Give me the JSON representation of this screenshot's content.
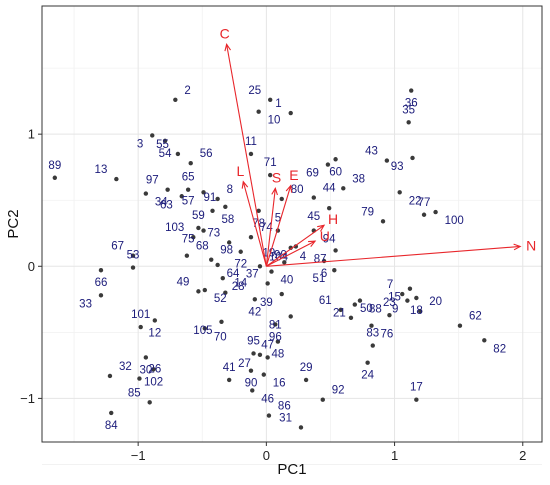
{
  "chart_data": {
    "type": "scatter",
    "subtype": "pca-biplot",
    "xlabel": "PC1",
    "ylabel": "PC2",
    "xlim": [
      -1.75,
      2.15
    ],
    "ylim": [
      -1.33,
      1.97
    ],
    "xticks": [
      -1,
      0,
      1,
      2
    ],
    "yticks": [
      -1,
      0,
      1
    ],
    "xtick_labels": [
      "−1",
      "0",
      "1",
      "2"
    ],
    "ytick_labels": [
      "−1",
      "0",
      "1"
    ],
    "grid": true,
    "colors": {
      "points": "#3a3a3a",
      "labels": "#1b1b7a",
      "loadings": "#e8262b"
    },
    "points": [
      {
        "label": "1",
        "x": 0.19,
        "y": 1.16
      },
      {
        "label": "2",
        "x": -0.71,
        "y": 1.26
      },
      {
        "label": "3",
        "x": -0.89,
        "y": 0.99
      },
      {
        "label": "4",
        "x": 0.19,
        "y": 0.14
      },
      {
        "label": "5",
        "x": 0.09,
        "y": 0.27
      },
      {
        "label": "6",
        "x": 0.45,
        "y": 0.04
      },
      {
        "label": "7",
        "x": 1.06,
        "y": -0.21
      },
      {
        "label": "8",
        "x": -0.38,
        "y": 0.51
      },
      {
        "label": "9",
        "x": 1.1,
        "y": -0.26
      },
      {
        "label": "10",
        "x": -0.06,
        "y": 1.17
      },
      {
        "label": "11",
        "x": -0.12,
        "y": 0.85
      },
      {
        "label": "12",
        "x": -0.87,
        "y": -0.41
      },
      {
        "label": "13",
        "x": -1.17,
        "y": 0.66
      },
      {
        "label": "14",
        "x": -0.32,
        "y": -0.2
      },
      {
        "label": "15",
        "x": 1.12,
        "y": -0.17
      },
      {
        "label": "16",
        "x": -0.02,
        "y": -0.82
      },
      {
        "label": "17",
        "x": 1.17,
        "y": -1.01
      },
      {
        "label": "18",
        "x": 1.17,
        "y": -0.24
      },
      {
        "label": "19",
        "x": 0.14,
        "y": 0.03
      },
      {
        "label": "20",
        "x": 1.2,
        "y": -0.34
      },
      {
        "label": "21",
        "x": 0.69,
        "y": -0.29
      },
      {
        "label": "22",
        "x": 1.04,
        "y": 0.56
      },
      {
        "label": "23",
        "x": 0.96,
        "y": -0.37
      },
      {
        "label": "24",
        "x": 0.79,
        "y": -0.73
      },
      {
        "label": "25",
        "x": 0.03,
        "y": 1.26
      },
      {
        "label": "26",
        "x": -0.99,
        "y": -0.85
      },
      {
        "label": "27",
        "x": -0.05,
        "y": -0.67
      },
      {
        "label": "28",
        "x": -0.34,
        "y": -0.09
      },
      {
        "label": "29",
        "x": 0.31,
        "y": -0.86
      },
      {
        "label": "30",
        "x": -0.94,
        "y": -0.69
      },
      {
        "label": "31",
        "x": 0.27,
        "y": -1.22
      },
      {
        "label": "32",
        "x": -1.22,
        "y": -0.83
      },
      {
        "label": "33",
        "x": -1.29,
        "y": -0.22
      },
      {
        "label": "34",
        "x": -0.94,
        "y": 0.55
      },
      {
        "label": "35",
        "x": 1.11,
        "y": 1.09
      },
      {
        "label": "36",
        "x": 1.13,
        "y": 1.33
      },
      {
        "label": "37",
        "x": 0.01,
        "y": -0.13
      },
      {
        "label": "38",
        "x": 0.6,
        "y": 0.59
      },
      {
        "label": "39",
        "x": 0.12,
        "y": -0.21
      },
      {
        "label": "40",
        "x": 0.04,
        "y": -0.04
      },
      {
        "label": "41",
        "x": -0.29,
        "y": -0.86
      },
      {
        "label": "42",
        "x": -0.09,
        "y": -0.25
      },
      {
        "label": "43",
        "x": 0.94,
        "y": 0.8
      },
      {
        "label": "44",
        "x": 0.37,
        "y": 0.52
      },
      {
        "label": "45",
        "x": 0.49,
        "y": 0.44
      },
      {
        "label": "46",
        "x": -0.11,
        "y": -0.94
      },
      {
        "label": "47",
        "x": 0.01,
        "y": -0.69
      },
      {
        "label": "48",
        "x": 0.09,
        "y": -0.57
      },
      {
        "label": "49",
        "x": -0.53,
        "y": -0.19
      },
      {
        "label": "50",
        "x": 0.66,
        "y": -0.39
      },
      {
        "label": "51",
        "x": 0.53,
        "y": -0.03
      },
      {
        "label": "52",
        "x": -0.48,
        "y": -0.18
      },
      {
        "label": "53",
        "x": -1.04,
        "y": -0.01
      },
      {
        "label": "54",
        "x": -0.79,
        "y": 0.95
      },
      {
        "label": "55",
        "x": -0.69,
        "y": 0.85
      },
      {
        "label": "56",
        "x": -0.59,
        "y": 0.78
      },
      {
        "label": "57",
        "x": -0.49,
        "y": 0.56
      },
      {
        "label": "58",
        "x": -0.42,
        "y": 0.42
      },
      {
        "label": "59",
        "x": -0.53,
        "y": 0.29
      },
      {
        "label": "60",
        "x": 0.54,
        "y": 0.81
      },
      {
        "label": "61",
        "x": 0.58,
        "y": -0.33
      },
      {
        "label": "62",
        "x": 1.51,
        "y": -0.45
      },
      {
        "label": "63",
        "x": -0.66,
        "y": 0.53
      },
      {
        "label": "64",
        "x": -0.38,
        "y": 0.01
      },
      {
        "label": "65",
        "x": -0.61,
        "y": 0.58
      },
      {
        "label": "66",
        "x": -1.29,
        "y": -0.03
      },
      {
        "label": "67",
        "x": -1.04,
        "y": 0.08
      },
      {
        "label": "68",
        "x": -0.62,
        "y": 0.08
      },
      {
        "label": "69",
        "x": 0.48,
        "y": 0.77
      },
      {
        "label": "70",
        "x": -0.48,
        "y": -0.47
      },
      {
        "label": "71",
        "x": 0.03,
        "y": 0.69
      },
      {
        "label": "72",
        "x": -0.2,
        "y": 0.11
      },
      {
        "label": "73",
        "x": -0.29,
        "y": 0.18
      },
      {
        "label": "74",
        "x": -0.12,
        "y": 0.22
      },
      {
        "label": "75",
        "x": -0.49,
        "y": 0.27
      },
      {
        "label": "76",
        "x": 0.82,
        "y": -0.45
      },
      {
        "label": "77",
        "x": 1.23,
        "y": 0.39
      },
      {
        "label": "78",
        "x": -0.06,
        "y": 0.42
      },
      {
        "label": "79",
        "x": 0.91,
        "y": 0.34
      },
      {
        "label": "80",
        "x": 0.12,
        "y": 0.51
      },
      {
        "label": "81",
        "x": 0.19,
        "y": -0.38
      },
      {
        "label": "82",
        "x": 1.7,
        "y": -0.56
      },
      {
        "label": "83",
        "x": 0.83,
        "y": -0.6
      },
      {
        "label": "84",
        "x": -1.21,
        "y": -1.11
      },
      {
        "label": "85",
        "x": -0.91,
        "y": -1.03
      },
      {
        "label": "86",
        "x": 0.02,
        "y": -1.13
      },
      {
        "label": "87",
        "x": 0.54,
        "y": 0.12
      },
      {
        "label": "88",
        "x": 0.73,
        "y": -0.26
      },
      {
        "label": "89",
        "x": -1.65,
        "y": 0.67
      },
      {
        "label": "90",
        "x": -0.12,
        "y": -0.79
      },
      {
        "label": "91",
        "x": -0.32,
        "y": 0.45
      },
      {
        "label": "92",
        "x": 0.44,
        "y": -1.01
      },
      {
        "label": "93",
        "x": 1.14,
        "y": 0.82
      },
      {
        "label": "94",
        "x": 0.37,
        "y": 0.27
      },
      {
        "label": "95",
        "x": -0.1,
        "y": -0.66
      },
      {
        "label": "96",
        "x": 0.07,
        "y": -0.44
      },
      {
        "label": "97",
        "x": -0.77,
        "y": 0.58
      },
      {
        "label": "98",
        "x": -0.43,
        "y": 0.05
      },
      {
        "label": "99",
        "x": 0.23,
        "y": 0.15
      },
      {
        "label": "100",
        "x": 1.32,
        "y": 0.41
      },
      {
        "label": "101",
        "x": -0.98,
        "y": -0.46
      },
      {
        "label": "102",
        "x": -0.88,
        "y": -0.78
      },
      {
        "label": "103",
        "x": -0.57,
        "y": 0.22
      },
      {
        "label": "104",
        "x": -0.05,
        "y": 0.0
      },
      {
        "label": "105",
        "x": -0.35,
        "y": -0.42
      }
    ],
    "loadings": [
      {
        "label": "C",
        "x": -0.31,
        "y": 1.68
      },
      {
        "label": "L",
        "x": -0.18,
        "y": 0.64
      },
      {
        "label": "S",
        "x": 0.07,
        "y": 0.59
      },
      {
        "label": "E",
        "x": 0.19,
        "y": 0.61
      },
      {
        "label": "H",
        "x": 0.45,
        "y": 0.31
      },
      {
        "label": "U",
        "x": 0.38,
        "y": 0.19
      },
      {
        "label": "N",
        "x": 1.98,
        "y": 0.15
      }
    ]
  }
}
